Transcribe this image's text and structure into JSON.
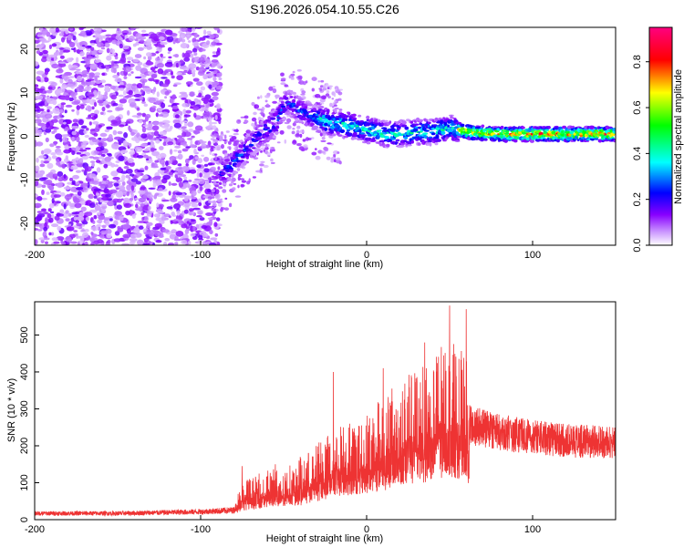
{
  "title": "S196.2026.054.10.55.C26",
  "chart_data": [
    {
      "type": "heatmap",
      "xlabel": "Height of straight line (km)",
      "ylabel": "Frequency (Hz)",
      "xlim": [
        -200,
        150
      ],
      "ylim": [
        -25,
        25
      ],
      "xticks": [
        -200,
        -100,
        0,
        100
      ],
      "yticks": [
        -20,
        -10,
        0,
        10,
        20
      ],
      "xtick_labels": [
        "-200",
        "-100",
        "0",
        "100"
      ],
      "ytick_labels": [
        "-20",
        "-10",
        "0",
        "10",
        "20"
      ],
      "colorbar": {
        "label": "Normalized spectral amplitude",
        "range": [
          0,
          0.95
        ],
        "ticks": [
          0,
          0.2,
          0.4,
          0.6,
          0.8
        ],
        "tick_labels": [
          "0.0",
          "0.2",
          "0.4",
          "0.6",
          "0.8"
        ],
        "colors": [
          "#ffffff",
          "#8800ff",
          "#0000ff",
          "#00ffff",
          "#00ff00",
          "#ffff00",
          "#ff0000",
          "#ff0080"
        ]
      },
      "frequency_ridge": [
        {
          "x": -85,
          "y": -8
        },
        {
          "x": -75,
          "y": -4
        },
        {
          "x": -65,
          "y": 0
        },
        {
          "x": -55,
          "y": 3
        },
        {
          "x": -48,
          "y": 8
        },
        {
          "x": -40,
          "y": 6
        },
        {
          "x": -30,
          "y": 4
        },
        {
          "x": -20,
          "y": 3
        },
        {
          "x": -10,
          "y": 2.5
        },
        {
          "x": 0,
          "y": 1.5
        },
        {
          "x": 10,
          "y": 0.5
        },
        {
          "x": 20,
          "y": 0.5
        },
        {
          "x": 30,
          "y": 1
        },
        {
          "x": 40,
          "y": 1
        },
        {
          "x": 50,
          "y": 2
        },
        {
          "x": 60,
          "y": 1
        },
        {
          "x": 80,
          "y": 0.5
        },
        {
          "x": 100,
          "y": 0.5
        },
        {
          "x": 120,
          "y": 0.5
        },
        {
          "x": 150,
          "y": 0.5
        }
      ]
    },
    {
      "type": "line",
      "xlabel": "Height of straight line (km)",
      "ylabel": "SNR (10 * v/v)",
      "xlim": [
        -200,
        150
      ],
      "ylim": [
        0,
        590
      ],
      "xticks": [
        -200,
        -100,
        0,
        100
      ],
      "yticks": [
        0,
        100,
        200,
        300,
        400,
        500
      ],
      "xtick_labels": [
        "-200",
        "-100",
        "0",
        "100"
      ],
      "ytick_labels": [
        "0",
        "100",
        "200",
        "300",
        "400",
        "500"
      ],
      "color": "#ee3333",
      "envelope": [
        {
          "x": -200,
          "y": 20
        },
        {
          "x": -150,
          "y": 20
        },
        {
          "x": -100,
          "y": 25
        },
        {
          "x": -80,
          "y": 30
        },
        {
          "x": -75,
          "y": 70
        },
        {
          "x": -60,
          "y": 90
        },
        {
          "x": -40,
          "y": 110
        },
        {
          "x": -20,
          "y": 170
        },
        {
          "x": 0,
          "y": 200
        },
        {
          "x": 20,
          "y": 250
        },
        {
          "x": 40,
          "y": 300
        },
        {
          "x": 50,
          "y": 330
        },
        {
          "x": 60,
          "y": 300
        },
        {
          "x": 62,
          "y": 270
        },
        {
          "x": 80,
          "y": 250
        },
        {
          "x": 100,
          "y": 235
        },
        {
          "x": 120,
          "y": 225
        },
        {
          "x": 150,
          "y": 220
        }
      ],
      "peaks": [
        {
          "x": -75,
          "y": 145
        },
        {
          "x": -55,
          "y": 150
        },
        {
          "x": -40,
          "y": 170
        },
        {
          "x": -20,
          "y": 400
        },
        {
          "x": 10,
          "y": 410
        },
        {
          "x": 35,
          "y": 480
        },
        {
          "x": 50,
          "y": 580
        },
        {
          "x": 60,
          "y": 570
        }
      ]
    }
  ]
}
